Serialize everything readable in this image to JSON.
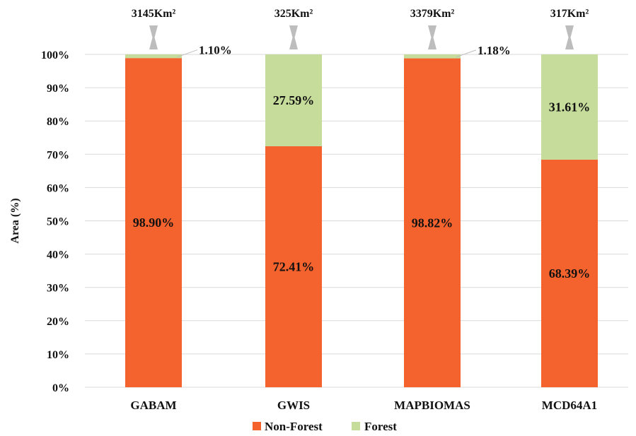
{
  "chart_data": {
    "type": "bar",
    "stacked": true,
    "categories": [
      "GABAM",
      "GWIS",
      "MAPBIOMAS",
      "MCD64A1"
    ],
    "series": [
      {
        "name": "Non-Forest",
        "color": "#f4622d",
        "values": [
          98.9,
          72.41,
          98.82,
          68.39
        ]
      },
      {
        "name": "Forest",
        "color": "#c6dc9a",
        "values": [
          1.1,
          27.59,
          1.18,
          31.61
        ]
      }
    ],
    "data_labels": {
      "Non-Forest": [
        "98.90%",
        "72.41%",
        "98.82%",
        "68.39%"
      ],
      "Forest": [
        "1.10%",
        "27.59%",
        "1.18%",
        "31.61%"
      ]
    },
    "totals": [
      "3145Km²",
      "325Km²",
      "3379Km²",
      "317Km²"
    ],
    "ylabel": "Area (%)",
    "xlabel": "",
    "ylim": [
      0,
      100
    ],
    "yticks": [
      "0%",
      "10%",
      "20%",
      "30%",
      "40%",
      "50%",
      "60%",
      "70%",
      "80%",
      "90%",
      "100%"
    ],
    "grid": true,
    "legend": "bottom",
    "total_marker_color": "#bdbdbd",
    "grid_color": "#d9d9d9"
  }
}
